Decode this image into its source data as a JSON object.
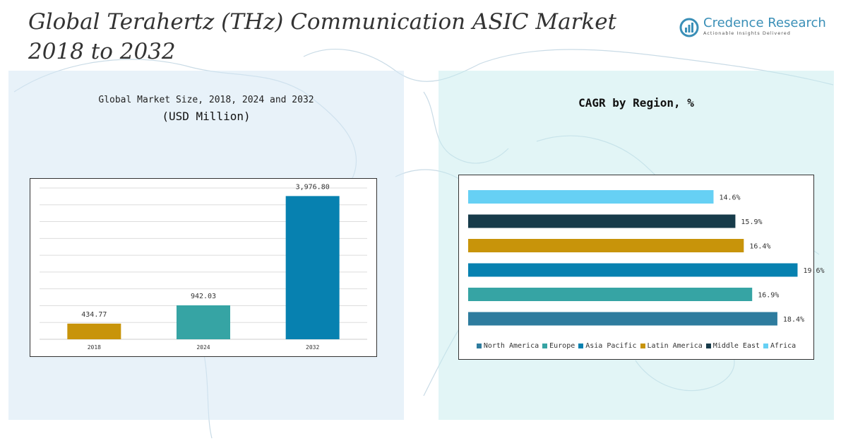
{
  "header": {
    "title_line1": "Global Terahertz (THz) Communication ASIC Market",
    "title_line2": "2018 to 2032"
  },
  "logo": {
    "name": "Credence Research",
    "tagline": "Actionable Insights Delivered",
    "icon": "logo-icon"
  },
  "left_panel": {
    "subtitle": "Global Market Size, 2018, 2024 and 2032",
    "unit": "(USD Million)"
  },
  "right_panel": {
    "title": "CAGR by Region, %"
  },
  "chart_data": [
    {
      "type": "bar",
      "title": "Global Market Size, 2018, 2024 and 2032",
      "ylabel": "(USD Million)",
      "categories": [
        "2018",
        "2024",
        "2032"
      ],
      "values": [
        434.77,
        942.03,
        3976.8
      ],
      "value_labels": [
        "434.77",
        "942.03",
        "3,976.80"
      ],
      "colors": [
        "#c8940a",
        "#36a4a4",
        "#0781b0"
      ],
      "ylim": [
        0,
        4200
      ],
      "grid": true
    },
    {
      "type": "bar",
      "orientation": "horizontal",
      "title": "CAGR by Region, %",
      "categories": [
        "North America",
        "Europe",
        "Asia Pacific",
        "Latin America",
        "Middle East",
        "Africa"
      ],
      "values": [
        18.4,
        16.9,
        19.6,
        16.4,
        15.9,
        14.6
      ],
      "value_labels": [
        "18.4%",
        "16.9%",
        "19.6%",
        "16.4%",
        "15.9%",
        "14.6%"
      ],
      "colors": [
        "#2e7c9e",
        "#36a4a4",
        "#0781b0",
        "#c8940a",
        "#173b4a",
        "#66d0f4"
      ],
      "xlim": [
        0,
        20
      ],
      "legend_position": "bottom"
    }
  ]
}
